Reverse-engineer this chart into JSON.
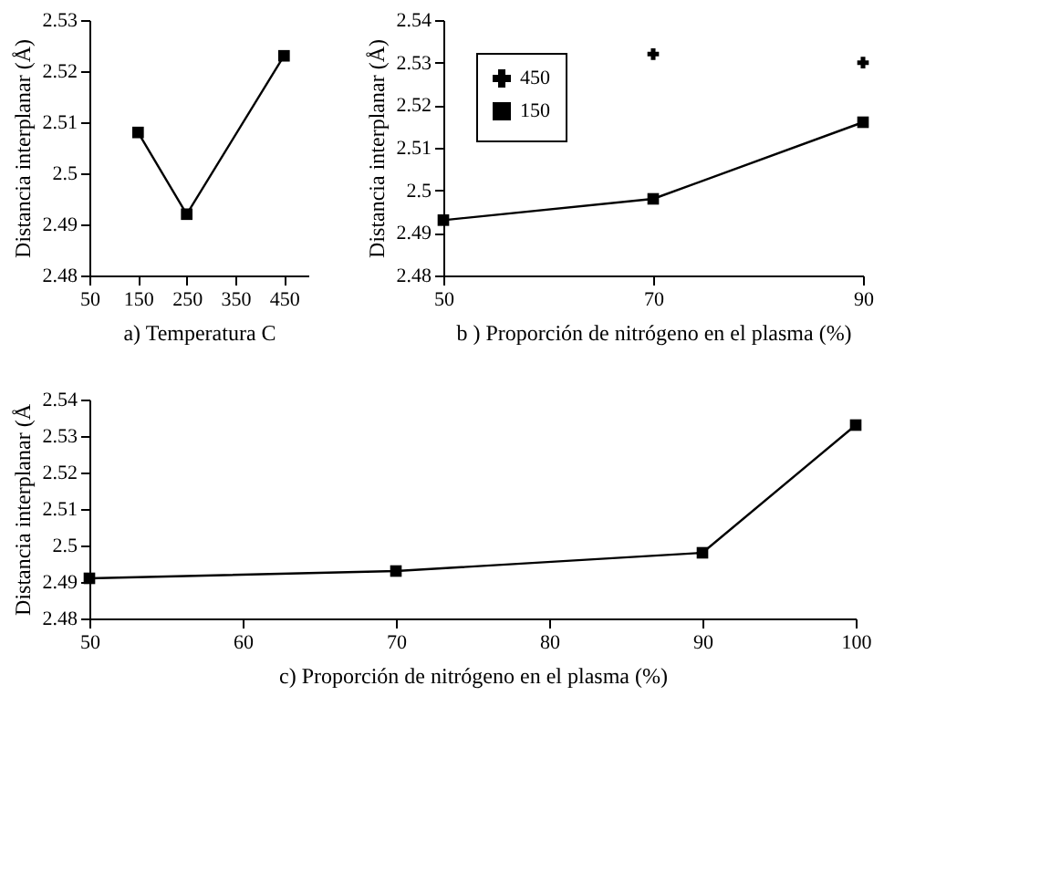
{
  "chart_data": [
    {
      "type": "line",
      "xlabel": "a) Temperatura C",
      "ylabel": "Distancia interplanar (Å)",
      "x": [
        150,
        250,
        450
      ],
      "xlim": [
        50,
        500
      ],
      "xticks": [
        50,
        150,
        250,
        350,
        450
      ],
      "ylim": [
        2.48,
        2.53
      ],
      "yticks": [
        2.48,
        2.49,
        2.5,
        2.51,
        2.52,
        2.53
      ],
      "grid": false,
      "marker": "square",
      "line_style": "solid",
      "series": [
        {
          "color": "#000000",
          "values": [
            2.508,
            2.492,
            2.523
          ]
        }
      ]
    },
    {
      "type": "line",
      "xlabel": "b ) Proporción de nitrógeno en el plasma (%)",
      "ylabel": "Distancia interplanar (Å)",
      "x": [
        50,
        70,
        90
      ],
      "xlim": [
        50,
        90
      ],
      "xticks": [
        50,
        70,
        90
      ],
      "ylim": [
        2.48,
        2.54
      ],
      "yticks": [
        2.48,
        2.49,
        2.5,
        2.51,
        2.52,
        2.53,
        2.54
      ],
      "grid": false,
      "legend": "top left",
      "line_style": "solid",
      "series": [
        {
          "name": "450",
          "type": "scatter",
          "marker": "cross",
          "color": "#000000",
          "x": [
            70,
            90
          ],
          "values": [
            2.532,
            2.53
          ]
        },
        {
          "name": "150",
          "type": "line",
          "marker": "square",
          "color": "#000000",
          "values": [
            2.493,
            2.498,
            2.516
          ]
        }
      ]
    },
    {
      "type": "line",
      "xlabel": "c)     Proporción de nitrógeno en el plasma (%)",
      "ylabel": "Distancia interplanar (Å",
      "x": [
        50,
        70,
        90,
        100
      ],
      "xlim": [
        50,
        100
      ],
      "xticks": [
        50,
        60,
        70,
        80,
        90,
        100
      ],
      "ylim": [
        2.48,
        2.54
      ],
      "yticks": [
        2.48,
        2.49,
        2.5,
        2.51,
        2.52,
        2.53,
        2.54
      ],
      "grid": false,
      "marker": "square",
      "line_style": "solid",
      "series": [
        {
          "color": "#000000",
          "values": [
            2.491,
            2.493,
            2.498,
            2.533
          ]
        }
      ]
    }
  ]
}
